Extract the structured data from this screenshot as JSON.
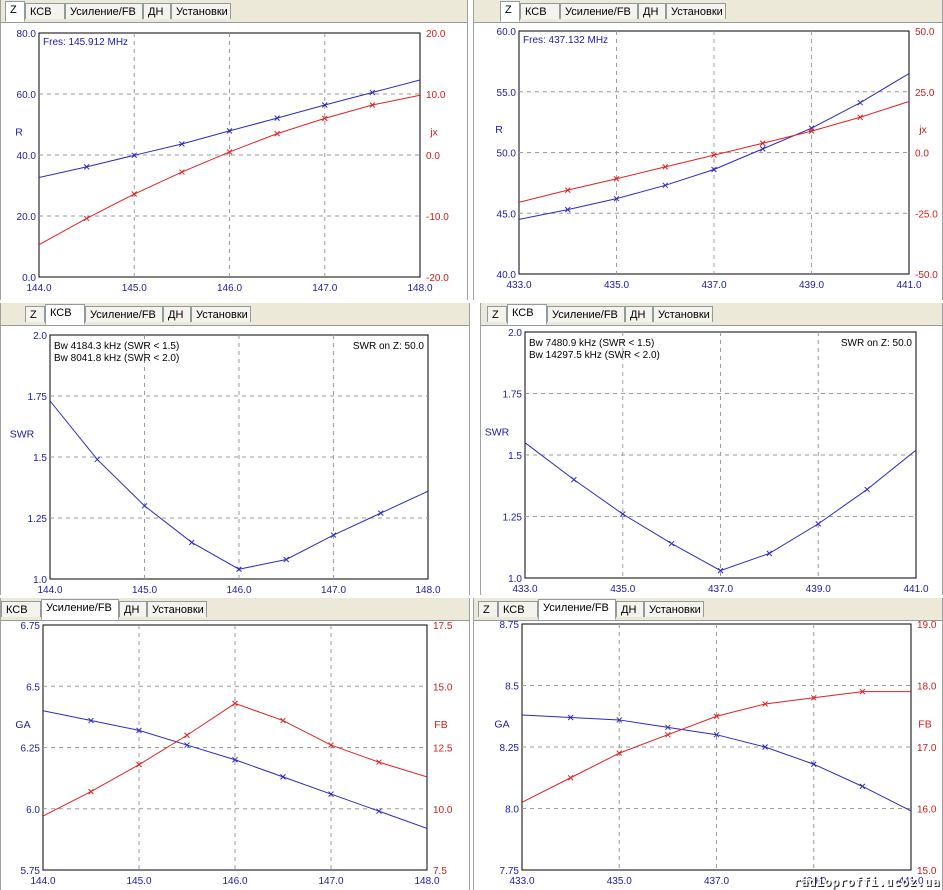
{
  "tabs": [
    "Z",
    "КСВ",
    "Усиление/FB",
    "ДН",
    "Установки"
  ],
  "colors": {
    "blue": "#2a2ac0",
    "red": "#e02020",
    "grid": "#9a9a9a"
  },
  "watermark": "radioproffi.ucoz.ua",
  "chart_data": [
    {
      "id": "z-145",
      "active_tab": 0,
      "type": "line",
      "xlabel": "",
      "xlim": [
        144,
        148
      ],
      "xticks": [
        "144.0",
        "145.0",
        "146.0",
        "147.0",
        "148.0"
      ],
      "ylabel_left": "R",
      "ylim_left": [
        0,
        80
      ],
      "yticks_left": [
        "0.0",
        "20.0",
        "40.0",
        "60.0",
        "80.0"
      ],
      "ylabel_right": "jx",
      "ylim_right": [
        -20,
        20
      ],
      "yticks_right": [
        "-20.0",
        "-10.0",
        "0.0",
        "10.0",
        "20.0"
      ],
      "annotations": [
        "Fres: 145.912 MHz"
      ],
      "series": [
        {
          "axis": "left",
          "color": "blue",
          "x": [
            144,
            144.5,
            145,
            145.5,
            146,
            146.5,
            147,
            147.5,
            148
          ],
          "values": [
            32.6,
            36.1,
            39.9,
            43.6,
            47.9,
            52.1,
            56.4,
            60.5,
            64.6
          ]
        },
        {
          "axis": "right",
          "color": "red",
          "x": [
            144,
            144.5,
            145,
            145.5,
            146,
            146.5,
            147,
            147.5,
            148
          ],
          "values": [
            -14.7,
            -10.4,
            -6.4,
            -2.8,
            0.5,
            3.5,
            6.0,
            8.2,
            9.8
          ]
        }
      ]
    },
    {
      "id": "z-437",
      "active_tab": 0,
      "type": "line",
      "xlabel": "",
      "xlim": [
        433,
        441
      ],
      "xticks": [
        "433.0",
        "435.0",
        "437.0",
        "439.0",
        "441.0"
      ],
      "ylabel_left": "R",
      "ylim_left": [
        40,
        60
      ],
      "yticks_left": [
        "40.0",
        "45.0",
        "50.0",
        "55.0",
        "60.0"
      ],
      "ylabel_right": "jx",
      "ylim_right": [
        -50,
        50
      ],
      "yticks_right": [
        "-50.0",
        "-25.0",
        "0.0",
        "25.0",
        "50.0"
      ],
      "annotations": [
        "Fres: 437.132 MHz"
      ],
      "series": [
        {
          "axis": "left",
          "color": "blue",
          "x": [
            433,
            434,
            435,
            436,
            437,
            438,
            439,
            440,
            441
          ],
          "values": [
            44.5,
            45.3,
            46.2,
            47.3,
            48.6,
            50.3,
            52.0,
            54.1,
            56.5
          ]
        },
        {
          "axis": "right",
          "color": "red",
          "x": [
            433,
            434,
            435,
            436,
            437,
            438,
            439,
            440,
            441
          ],
          "values": [
            -20.5,
            -15.5,
            -10.8,
            -5.9,
            -1.1,
            3.8,
            8.8,
            14.5,
            21.0
          ]
        }
      ]
    },
    {
      "id": "swr-145",
      "active_tab": 1,
      "type": "line",
      "xlabel": "",
      "xlim": [
        144,
        148
      ],
      "xticks": [
        "144.0",
        "145.0",
        "146.0",
        "147.0",
        "148.0"
      ],
      "ylabel_left": "SWR",
      "ylim_left": [
        1.0,
        2.0
      ],
      "yticks_left": [
        "1.0",
        "1.25",
        "1.5",
        "1.75",
        "2.0"
      ],
      "annotations": [
        "Bw 4184.3 kHz (SWR < 1.5)",
        "Bw 8041.8 kHz (SWR < 2.0)",
        "SWR on Z: 50.0"
      ],
      "series": [
        {
          "axis": "left",
          "color": "blue",
          "x": [
            144,
            144.5,
            145,
            145.5,
            146,
            146.5,
            147,
            147.5,
            148
          ],
          "values": [
            1.73,
            1.49,
            1.3,
            1.15,
            1.04,
            1.08,
            1.18,
            1.27,
            1.36
          ]
        }
      ]
    },
    {
      "id": "swr-437",
      "active_tab": 1,
      "type": "line",
      "xlabel": "",
      "xlim": [
        433,
        441
      ],
      "xticks": [
        "433.0",
        "435.0",
        "437.0",
        "439.0",
        "441.0"
      ],
      "ylabel_left": "SWR",
      "ylim_left": [
        1.0,
        2.0
      ],
      "yticks_left": [
        "1.0",
        "1.25",
        "1.5",
        "1.75",
        "2.0"
      ],
      "annotations": [
        "Bw 7480.9 kHz (SWR < 1.5)",
        "Bw 14297.5 kHz (SWR < 2.0)",
        "SWR on Z: 50.0"
      ],
      "series": [
        {
          "axis": "left",
          "color": "blue",
          "x": [
            433,
            434,
            435,
            436,
            437,
            438,
            439,
            440,
            441
          ],
          "values": [
            1.55,
            1.4,
            1.26,
            1.14,
            1.03,
            1.1,
            1.22,
            1.36,
            1.52
          ]
        }
      ]
    },
    {
      "id": "ga-145",
      "active_tab": 2,
      "type": "line",
      "xlabel": "",
      "xlim": [
        144,
        148
      ],
      "xticks": [
        "144.0",
        "145.0",
        "146.0",
        "147.0",
        "148.0"
      ],
      "ylabel_left": "GA",
      "ylim_left": [
        5.75,
        6.75
      ],
      "yticks_left": [
        "5.75",
        "6.0",
        "6.25",
        "6.5",
        "6.75"
      ],
      "ylabel_right": "FB",
      "ylim_right": [
        7.5,
        17.5
      ],
      "yticks_right": [
        "7.5",
        "10.0",
        "12.5",
        "15.0",
        "17.5"
      ],
      "annotations": [],
      "series": [
        {
          "axis": "left",
          "color": "blue",
          "x": [
            144,
            144.5,
            145,
            145.5,
            146,
            146.5,
            147,
            147.5,
            148
          ],
          "values": [
            6.4,
            6.36,
            6.32,
            6.26,
            6.2,
            6.13,
            6.06,
            5.99,
            5.92
          ]
        },
        {
          "axis": "right",
          "color": "red",
          "x": [
            144,
            144.5,
            145,
            145.5,
            146,
            146.5,
            147,
            147.5,
            148
          ],
          "values": [
            9.7,
            10.7,
            11.8,
            13.0,
            14.3,
            13.6,
            12.6,
            11.9,
            11.3
          ]
        }
      ]
    },
    {
      "id": "ga-437",
      "active_tab": 2,
      "type": "line",
      "xlabel": "",
      "xlim": [
        433,
        441
      ],
      "xticks": [
        "433.0",
        "435.0",
        "437.0",
        "439.0",
        "441.0"
      ],
      "ylabel_left": "GA",
      "ylim_left": [
        7.75,
        8.75
      ],
      "yticks_left": [
        "7.75",
        "8.0",
        "8.25",
        "8.5",
        "8.75"
      ],
      "ylabel_right": "FB",
      "ylim_right": [
        15.0,
        19.0
      ],
      "yticks_right": [
        "15.0",
        "16.0",
        "17.0",
        "18.0",
        "19.0"
      ],
      "annotations": [],
      "series": [
        {
          "axis": "left",
          "color": "blue",
          "x": [
            433,
            434,
            435,
            436,
            437,
            438,
            439,
            440,
            441
          ],
          "values": [
            8.38,
            8.37,
            8.36,
            8.33,
            8.3,
            8.25,
            8.18,
            8.09,
            7.99
          ]
        },
        {
          "axis": "right",
          "color": "red",
          "x": [
            433,
            434,
            435,
            436,
            437,
            438,
            439,
            440,
            441
          ],
          "values": [
            16.1,
            16.5,
            16.9,
            17.2,
            17.5,
            17.7,
            17.8,
            17.9,
            17.9
          ]
        }
      ]
    }
  ]
}
